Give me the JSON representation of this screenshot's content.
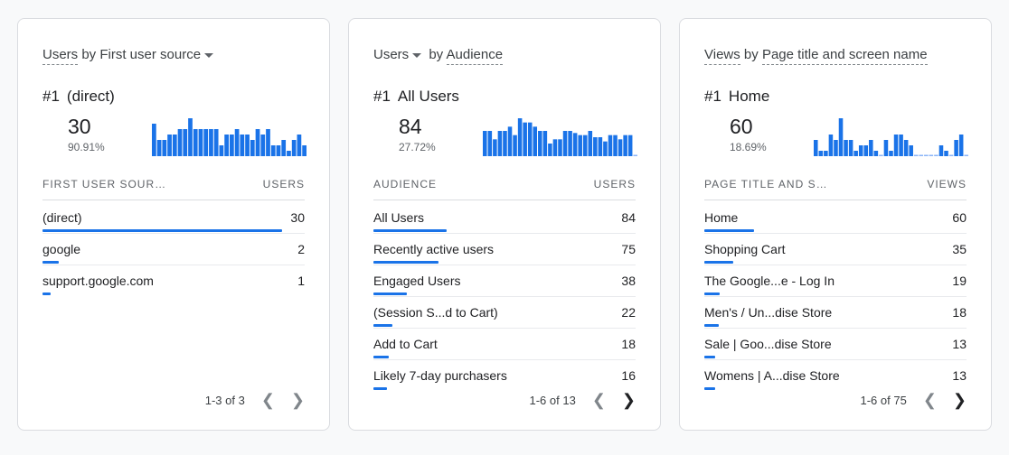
{
  "accent": "#1a73e8",
  "cards": [
    {
      "title_metric": "Users",
      "title_by": "by",
      "title_dim": "First user source",
      "dropdown_on": "dimension",
      "top_rank": "#1",
      "top_name": "(direct)",
      "top_value": "30",
      "top_pct": "90.91%",
      "spark": [
        6,
        3,
        3,
        4,
        4,
        5,
        5,
        7,
        5,
        5,
        5,
        5,
        5,
        2,
        4,
        4,
        5,
        4,
        4,
        3,
        5,
        4,
        5,
        2,
        2,
        3,
        1,
        3,
        4,
        2
      ],
      "col_dim": "FIRST USER SOUR…",
      "col_metric": "USERS",
      "rows": [
        {
          "label": "(direct)",
          "value": "30"
        },
        {
          "label": "google",
          "value": "2"
        },
        {
          "label": "support.google.com",
          "value": "1"
        }
      ],
      "pager": "1-3 of 3",
      "next_enabled": false
    },
    {
      "title_metric": "Users",
      "title_by": "by",
      "title_dim": "Audience",
      "dropdown_on": "metric",
      "top_rank": "#1",
      "top_name": "All Users",
      "top_value": "84",
      "top_pct": "27.72%",
      "spark": [
        6,
        6,
        4,
        6,
        6,
        7,
        5,
        9,
        8,
        8,
        7,
        6,
        6,
        3,
        4,
        4,
        6,
        6,
        5.5,
        5,
        5,
        6,
        4.5,
        4.5,
        3.5,
        5,
        5,
        4,
        5,
        5,
        0
      ],
      "col_dim": "AUDIENCE",
      "col_metric": "USERS",
      "rows": [
        {
          "label": "All Users",
          "value": "84"
        },
        {
          "label": "Recently active users",
          "value": "75"
        },
        {
          "label": "Engaged Users",
          "value": "38"
        },
        {
          "label": "(Session S...d to Cart)",
          "value": "22"
        },
        {
          "label": "Add to Cart",
          "value": "18"
        },
        {
          "label": "Likely 7-day purchasers",
          "value": "16"
        }
      ],
      "pager": "1-6 of 13",
      "next_enabled": true
    },
    {
      "title_metric": "Views",
      "title_by": "by",
      "title_dim": "Page title and screen name",
      "dropdown_on": "none",
      "top_rank": "#1",
      "top_name": "Home",
      "top_value": "60",
      "top_pct": "18.69%",
      "spark": [
        3,
        1,
        1,
        4,
        3,
        7,
        3,
        3,
        1,
        2,
        2,
        3,
        1,
        0,
        3,
        1,
        4,
        4,
        3,
        2,
        0,
        0,
        0,
        0,
        0,
        2,
        1,
        0,
        3,
        4,
        0
      ],
      "col_dim": "PAGE TITLE AND S…",
      "col_metric": "VIEWS",
      "rows": [
        {
          "label": "Home",
          "value": "60"
        },
        {
          "label": "Shopping Cart",
          "value": "35"
        },
        {
          "label": "The Google...e - Log In",
          "value": "19"
        },
        {
          "label": "Men's / Un...dise Store",
          "value": "18"
        },
        {
          "label": "Sale | Goo...dise Store",
          "value": "13"
        },
        {
          "label": "Womens | A...dise Store",
          "value": "13"
        }
      ],
      "pager": "1-6 of 75",
      "next_enabled": true
    }
  ]
}
